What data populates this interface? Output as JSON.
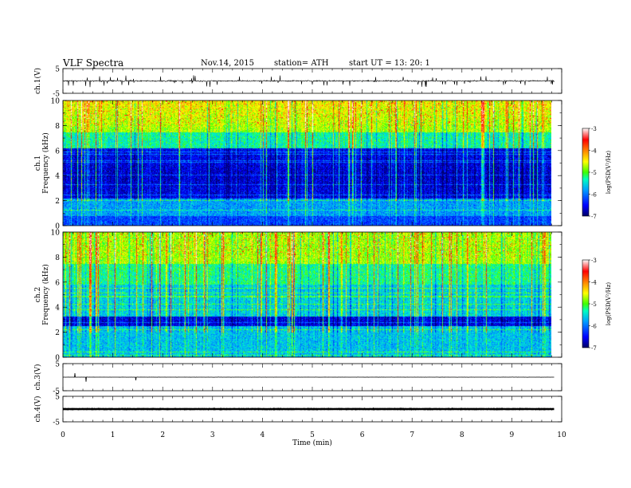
{
  "header": {
    "title": "VLF  Spectra",
    "date": "Nov.14, 2015",
    "station": "station= ATH",
    "start": "start  UT  =   13: 20: 1"
  },
  "chart_data": [
    {
      "type": "line",
      "name": "waveform-ch1",
      "ylabel": "ch.1(V)",
      "ylim": [
        -5,
        5
      ],
      "yticks": [
        "5",
        "-5"
      ],
      "xlim": [
        0,
        10
      ]
    },
    {
      "type": "heatmap",
      "name": "spectrogram-ch1",
      "ylabel_channel": "ch.1",
      "ylabel": "Frequency  (kHz)",
      "ylim": [
        0,
        10
      ],
      "yticks": [
        "0",
        "2",
        "4",
        "6",
        "8",
        "10"
      ],
      "xlim": [
        0,
        10
      ],
      "data_xmax": 9.8,
      "colorbar": {
        "label": "log(PSD(V²/Hz)",
        "range": [
          -7,
          -3
        ],
        "ticks": [
          "-3",
          "-4",
          "-5",
          "-6",
          "-7"
        ]
      }
    },
    {
      "type": "heatmap",
      "name": "spectrogram-ch2",
      "ylabel_channel": "ch.2",
      "ylabel": "Frequency  (kHz)",
      "ylim": [
        0,
        10
      ],
      "yticks": [
        "0",
        "2",
        "4",
        "6",
        "8",
        "10"
      ],
      "xlim": [
        0,
        10
      ],
      "data_xmax": 9.8,
      "colorbar": {
        "label": "log(PSD(V²/Hz)",
        "range": [
          -7,
          -3
        ],
        "ticks": [
          "-3",
          "-4",
          "-5",
          "-6",
          "-7"
        ]
      }
    },
    {
      "type": "line",
      "name": "waveform-ch3",
      "ylabel": "ch.3(V)",
      "ylim": [
        -5,
        5
      ],
      "yticks": [
        "5",
        "-5"
      ],
      "xlim": [
        0,
        10
      ]
    },
    {
      "type": "line",
      "name": "waveform-ch4",
      "ylabel": "ch.4(V)",
      "ylim": [
        -5,
        5
      ],
      "yticks": [
        "5",
        "-5"
      ],
      "xlim": [
        0,
        10
      ]
    }
  ],
  "xaxis": {
    "label": "Time  (min)",
    "ticks": [
      "0",
      "1",
      "2",
      "3",
      "4",
      "5",
      "6",
      "7",
      "8",
      "9",
      "10"
    ],
    "range": [
      0,
      10
    ]
  },
  "colors": {
    "axis": "#000000",
    "colormap": [
      "#000066",
      "#0000ff",
      "#00a0ff",
      "#00ffc0",
      "#40ff00",
      "#ffff00",
      "#ff8000",
      "#ff0000",
      "#ffffff"
    ]
  }
}
